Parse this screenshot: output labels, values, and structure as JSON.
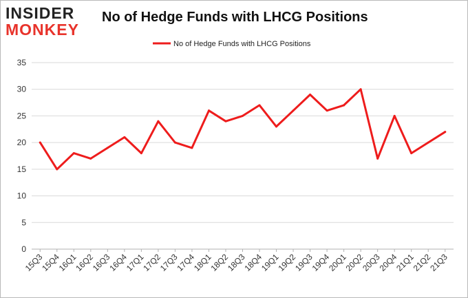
{
  "logo": {
    "line1": "INSIDER",
    "line2": "MONKEY"
  },
  "chart_data": {
    "type": "line",
    "title": "No of Hedge Funds with LHCG Positions",
    "xlabel": "",
    "ylabel": "",
    "ylim": [
      0,
      35
    ],
    "yticks": [
      0,
      5,
      10,
      15,
      20,
      25,
      30,
      35
    ],
    "grid": true,
    "legend_position": "top-center",
    "categories": [
      "15Q3",
      "15Q4",
      "16Q1",
      "16Q2",
      "16Q3",
      "16Q4",
      "17Q1",
      "17Q2",
      "17Q3",
      "17Q4",
      "18Q1",
      "18Q2",
      "18Q3",
      "18Q4",
      "19Q1",
      "19Q2",
      "19Q3",
      "19Q4",
      "20Q1",
      "20Q2",
      "20Q3",
      "20Q4",
      "21Q1",
      "21Q2",
      "21Q3"
    ],
    "series": [
      {
        "name": "No of Hedge Funds with LHCG Positions",
        "color": "#ee1c1c",
        "values": [
          20,
          15,
          18,
          17,
          19,
          21,
          18,
          24,
          20,
          19,
          26,
          24,
          25,
          27,
          23,
          26,
          29,
          26,
          27,
          30,
          17,
          25,
          18,
          20,
          22
        ]
      }
    ]
  }
}
